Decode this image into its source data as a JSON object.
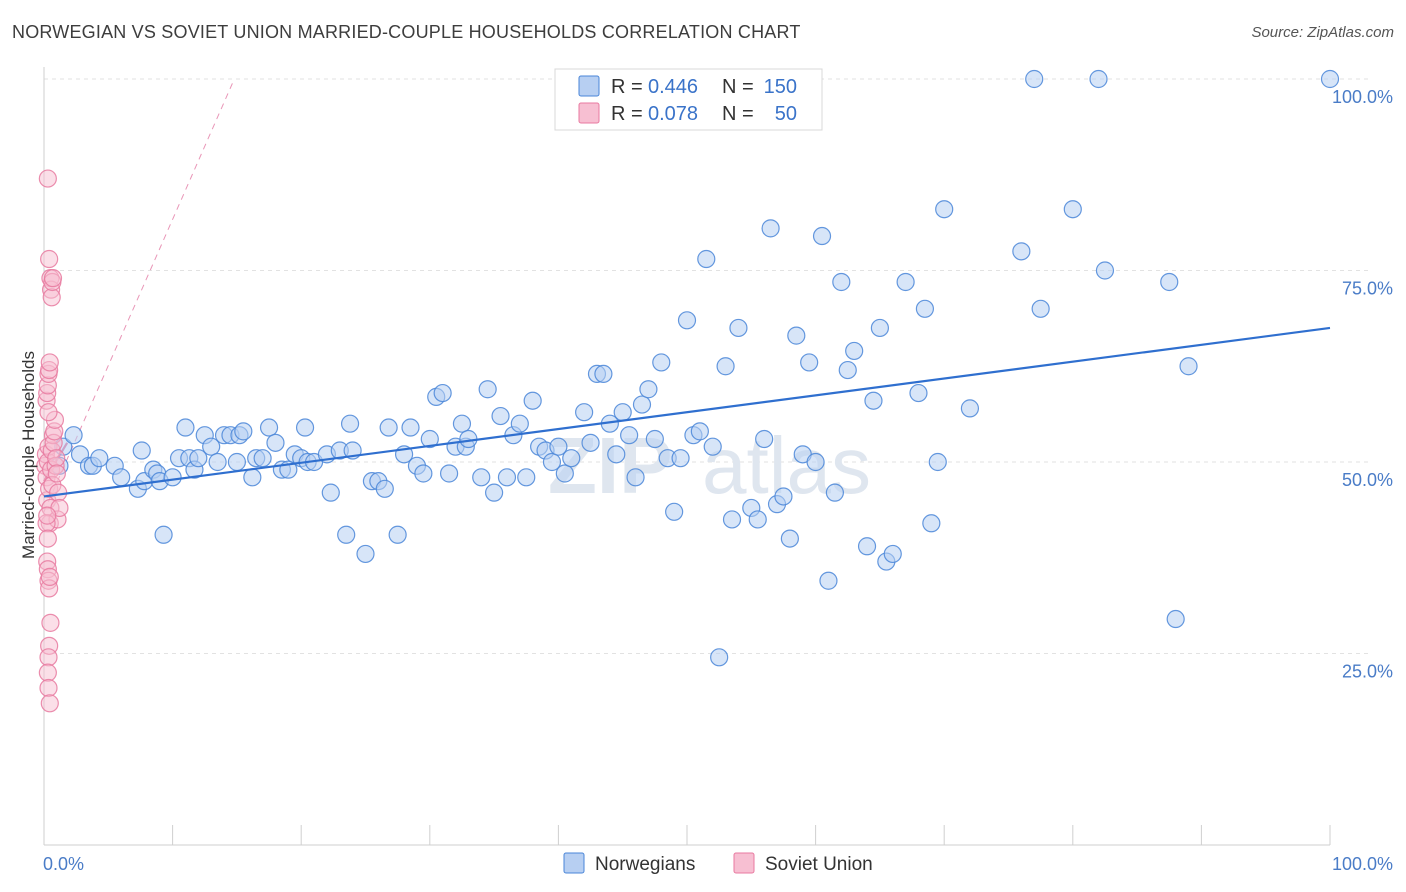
{
  "title": "NORWEGIAN VS SOVIET UNION MARRIED-COUPLE HOUSEHOLDS CORRELATION CHART",
  "source": "Source: ZipAtlas.com",
  "watermark": {
    "zip": "ZIP",
    "atlas": "atlas"
  },
  "colors": {
    "blue": "#4a86d8",
    "blue_fill": "#b7cff2",
    "pink": "#e87aa0",
    "pink_fill": "#f7bfd2",
    "blue_line": "#2f6fcf",
    "pink_line": "#e06a98"
  },
  "legend": {
    "r_label": "R =",
    "n_label": "N =",
    "rows": [
      {
        "r": "0.446",
        "n": "150"
      },
      {
        "r": "0.078",
        "n": "50"
      }
    ]
  },
  "chart_data": {
    "type": "scatter",
    "ylabel": "Married-couple Households",
    "xlim": [
      0,
      100
    ],
    "ylim": [
      0,
      100
    ],
    "x_tick_labels": [
      "0.0%",
      "100.0%"
    ],
    "y_ticks": [
      {
        "value": 25,
        "label": "25.0%"
      },
      {
        "value": 50,
        "label": "50.0%"
      },
      {
        "value": 75,
        "label": "75.0%"
      },
      {
        "value": 100,
        "label": "100.0%"
      }
    ],
    "series": [
      {
        "name": "Norwegians",
        "trend": {
          "x0": 0,
          "y0": 45.5,
          "x1": 100,
          "y1": 67.5
        },
        "points": [
          [
            1.2,
            49.5
          ],
          [
            1.5,
            52
          ],
          [
            2.3,
            53.5
          ],
          [
            2.8,
            51
          ],
          [
            3.5,
            49.5
          ],
          [
            3.8,
            49.5
          ],
          [
            4.3,
            50.5
          ],
          [
            5.5,
            49.5
          ],
          [
            6,
            48
          ],
          [
            7.3,
            46.5
          ],
          [
            7.6,
            51.5
          ],
          [
            7.8,
            47.5
          ],
          [
            8.5,
            49
          ],
          [
            8.8,
            48.5
          ],
          [
            9,
            47.5
          ],
          [
            9.3,
            40.5
          ],
          [
            10,
            48
          ],
          [
            10.5,
            50.5
          ],
          [
            11,
            54.5
          ],
          [
            11.3,
            50.5
          ],
          [
            11.7,
            49
          ],
          [
            12,
            50.5
          ],
          [
            12.5,
            53.5
          ],
          [
            13,
            52
          ],
          [
            13.5,
            50
          ],
          [
            14,
            53.5
          ],
          [
            14.5,
            53.5
          ],
          [
            15,
            50
          ],
          [
            15.2,
            53.5
          ],
          [
            15.5,
            54
          ],
          [
            16.2,
            48
          ],
          [
            16.5,
            50.5
          ],
          [
            17,
            50.5
          ],
          [
            17.5,
            54.5
          ],
          [
            18,
            52.5
          ],
          [
            18.5,
            49
          ],
          [
            19,
            49
          ],
          [
            19.5,
            51
          ],
          [
            20,
            50.5
          ],
          [
            20.3,
            54.5
          ],
          [
            20.5,
            50
          ],
          [
            21,
            50
          ],
          [
            22,
            51
          ],
          [
            22.3,
            46
          ],
          [
            23,
            51.5
          ],
          [
            23.5,
            40.5
          ],
          [
            23.8,
            55
          ],
          [
            24,
            51.5
          ],
          [
            25,
            38
          ],
          [
            25.5,
            47.5
          ],
          [
            26,
            47.5
          ],
          [
            26.5,
            46.5
          ],
          [
            26.8,
            54.5
          ],
          [
            27.5,
            40.5
          ],
          [
            28,
            51
          ],
          [
            28.5,
            54.5
          ],
          [
            29,
            49.5
          ],
          [
            29.5,
            48.5
          ],
          [
            30,
            53
          ],
          [
            30.5,
            58.5
          ],
          [
            31,
            59
          ],
          [
            31.5,
            48.5
          ],
          [
            32,
            52
          ],
          [
            32.5,
            55
          ],
          [
            32.8,
            52
          ],
          [
            33,
            53
          ],
          [
            34,
            48
          ],
          [
            34.5,
            59.5
          ],
          [
            35,
            46
          ],
          [
            35.5,
            56
          ],
          [
            36,
            48
          ],
          [
            36.5,
            53.5
          ],
          [
            37,
            55
          ],
          [
            37.5,
            48
          ],
          [
            38,
            58
          ],
          [
            38.5,
            52
          ],
          [
            39,
            51.5
          ],
          [
            39.5,
            50
          ],
          [
            40,
            52
          ],
          [
            40.5,
            48.5
          ],
          [
            41,
            50.5
          ],
          [
            42,
            56.5
          ],
          [
            42.5,
            52.5
          ],
          [
            43,
            61.5
          ],
          [
            43.5,
            61.5
          ],
          [
            44,
            55
          ],
          [
            44.5,
            51
          ],
          [
            45,
            56.5
          ],
          [
            45.5,
            53.5
          ],
          [
            46,
            48
          ],
          [
            46.5,
            57.5
          ],
          [
            47,
            59.5
          ],
          [
            47.5,
            53
          ],
          [
            48,
            63
          ],
          [
            48.5,
            50.5
          ],
          [
            49,
            43.5
          ],
          [
            49.5,
            50.5
          ],
          [
            50,
            68.5
          ],
          [
            50.5,
            53.5
          ],
          [
            51,
            54
          ],
          [
            51.5,
            76.5
          ],
          [
            52,
            52
          ],
          [
            52.5,
            24.5
          ],
          [
            53,
            62.5
          ],
          [
            53.5,
            42.5
          ],
          [
            54,
            67.5
          ],
          [
            55,
            44
          ],
          [
            55.5,
            42.5
          ],
          [
            56,
            53
          ],
          [
            56.5,
            80.5
          ],
          [
            57,
            44.5
          ],
          [
            57.5,
            45.5
          ],
          [
            58,
            40
          ],
          [
            58.5,
            66.5
          ],
          [
            59,
            51
          ],
          [
            59.5,
            63
          ],
          [
            60,
            50
          ],
          [
            60.5,
            79.5
          ],
          [
            61,
            34.5
          ],
          [
            61.5,
            46
          ],
          [
            62,
            73.5
          ],
          [
            62.5,
            62
          ],
          [
            63,
            64.5
          ],
          [
            64,
            39
          ],
          [
            64.5,
            58
          ],
          [
            65,
            67.5
          ],
          [
            65.5,
            37
          ],
          [
            66,
            38
          ],
          [
            67,
            73.5
          ],
          [
            68,
            59
          ],
          [
            68.5,
            70
          ],
          [
            69,
            42
          ],
          [
            69.5,
            50
          ],
          [
            70,
            83
          ],
          [
            72,
            57
          ],
          [
            76,
            77.5
          ],
          [
            77,
            100
          ],
          [
            77.5,
            70
          ],
          [
            80,
            83
          ],
          [
            82,
            100
          ],
          [
            82.5,
            75
          ],
          [
            87.5,
            73.5
          ],
          [
            88,
            29.5
          ],
          [
            89,
            62.5
          ],
          [
            100,
            100
          ]
        ]
      },
      {
        "name": "Soviet Union",
        "trend": {
          "x0": 0,
          "y0": 47.5,
          "x1": 1.8,
          "y1": 52.5
        },
        "trend_ext": {
          "x0": 0,
          "y0": 43.5,
          "x1": 14.8,
          "y1": 100
        },
        "points": [
          [
            0.1,
            49.5
          ],
          [
            0.15,
            51
          ],
          [
            0.2,
            48
          ],
          [
            0.25,
            45
          ],
          [
            0.3,
            50
          ],
          [
            0.35,
            52
          ],
          [
            0.4,
            46.5
          ],
          [
            0.45,
            42
          ],
          [
            0.5,
            44
          ],
          [
            0.55,
            49
          ],
          [
            0.6,
            51.5
          ],
          [
            0.65,
            47
          ],
          [
            0.7,
            53.5
          ],
          [
            0.75,
            52.5
          ],
          [
            0.8,
            54
          ],
          [
            0.85,
            55.5
          ],
          [
            0.9,
            49.5
          ],
          [
            0.95,
            50.5
          ],
          [
            1.0,
            48.5
          ],
          [
            1.05,
            42.5
          ],
          [
            1.1,
            46
          ],
          [
            1.2,
            44
          ],
          [
            0.2,
            58
          ],
          [
            0.25,
            59
          ],
          [
            0.3,
            60
          ],
          [
            0.35,
            61.5
          ],
          [
            0.4,
            62
          ],
          [
            0.45,
            63
          ],
          [
            0.5,
            74
          ],
          [
            0.55,
            72.5
          ],
          [
            0.6,
            71.5
          ],
          [
            0.65,
            73.5
          ],
          [
            0.7,
            74
          ],
          [
            0.4,
            76.5
          ],
          [
            0.3,
            87
          ],
          [
            0.25,
            37
          ],
          [
            0.3,
            36
          ],
          [
            0.35,
            34.5
          ],
          [
            0.4,
            33.5
          ],
          [
            0.45,
            35
          ],
          [
            0.5,
            29
          ],
          [
            0.4,
            26
          ],
          [
            0.35,
            24.5
          ],
          [
            0.3,
            22.5
          ],
          [
            0.35,
            20.5
          ],
          [
            0.45,
            18.5
          ],
          [
            0.2,
            42
          ],
          [
            0.25,
            43
          ],
          [
            0.3,
            40
          ],
          [
            0.35,
            56.5
          ]
        ]
      }
    ]
  }
}
